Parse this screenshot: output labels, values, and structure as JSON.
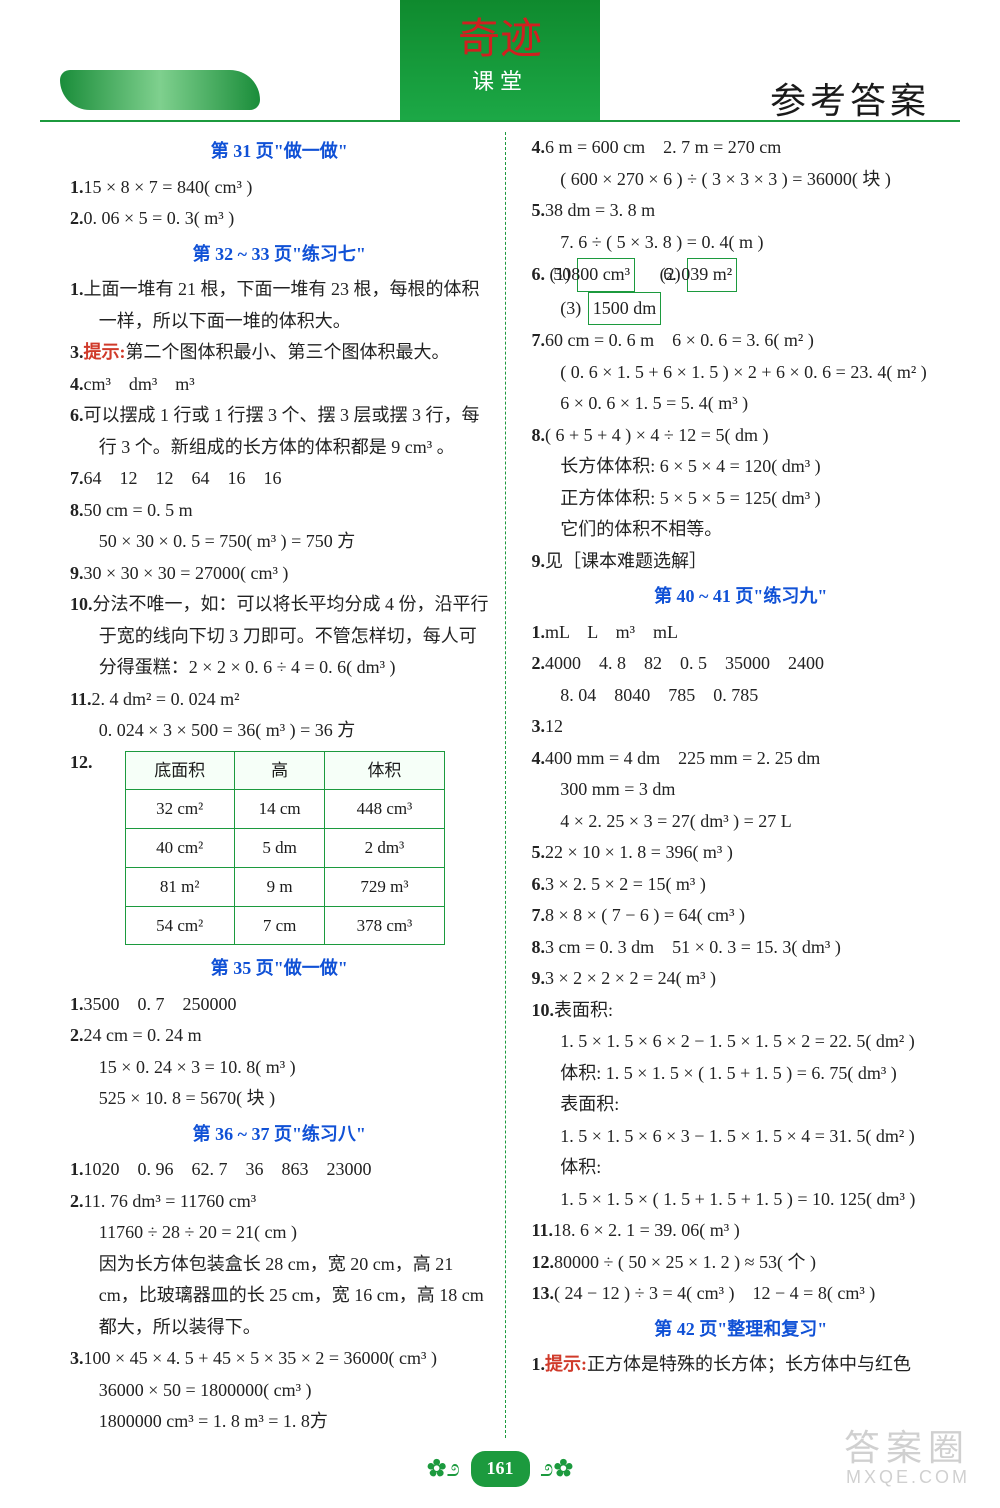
{
  "header": {
    "logo_top": "奇迹",
    "logo_bottom": "课堂",
    "title_right": "参考答案"
  },
  "left": {
    "sections": [
      {
        "title": "第 31 页\"做一做\"",
        "lines": [
          {
            "num": "1.",
            "text": "15 × 8 × 7 = 840( cm³ )"
          },
          {
            "num": "2.",
            "text": "0. 06 × 5 = 0. 3( m³ )"
          }
        ]
      },
      {
        "title": "第 32 ~ 33 页\"练习七\"",
        "lines": [
          {
            "num": "1.",
            "text": "上面一堆有 21 根，下面一堆有 23 根，每根的体积一样，所以下面一堆的体积大。"
          },
          {
            "num": "3.",
            "hint": "提示:",
            "text": "第二个图体积最小、第三个图体积最大。"
          },
          {
            "num": "4.",
            "text": "cm³　dm³　m³"
          },
          {
            "num": "6.",
            "text": "可以摆成 1 行或 1 行摆 3 个、摆 3 层或摆 3 行，每行 3 个。新组成的长方体的体积都是 9 cm³ 。"
          },
          {
            "num": "7.",
            "text": "64　12　12　64　16　16"
          },
          {
            "num": "8.",
            "text": "50 cm = 0. 5 m"
          },
          {
            "indent": true,
            "text": "50 × 30 × 0. 5 = 750( m³ ) = 750 方"
          },
          {
            "num": "9.",
            "text": "30 × 30 × 30 = 27000( cm³ )"
          },
          {
            "num": "10.",
            "text": "分法不唯一，如：可以将长平均分成 4 份，沿平行于宽的线向下切 3 刀即可。不管怎样切，每人可分得蛋糕：2 × 2 × 0. 6 ÷ 4 = 0. 6( dm³ )"
          },
          {
            "num": "11.",
            "text": "2. 4 dm² = 0. 024 m²"
          },
          {
            "indent": true,
            "text": "0. 024 × 3 × 500 = 36( m³ ) = 36 方"
          }
        ]
      }
    ],
    "table": {
      "num": "12.",
      "headers": [
        "底面积",
        "高",
        "体积"
      ],
      "rows": [
        [
          "32 cm²",
          "14 cm",
          "448 cm³"
        ],
        [
          "40 cm²",
          "5 dm",
          "2 dm³"
        ],
        [
          "81 m²",
          "9 m",
          "729 m³"
        ],
        [
          "54 cm²",
          "7 cm",
          "378 cm³"
        ]
      ]
    },
    "sections2": [
      {
        "title": "第 35 页\"做一做\"",
        "lines": [
          {
            "num": "1.",
            "text": "3500　0. 7　250000"
          },
          {
            "num": "2.",
            "text": "24 cm = 0. 24 m"
          },
          {
            "indent": true,
            "text": "15 × 0. 24 × 3 = 10. 8( m³ )"
          },
          {
            "indent": true,
            "text": "525 × 10. 8 = 5670( 块 )"
          }
        ]
      },
      {
        "title": "第 36 ~ 37 页\"练习八\"",
        "lines": [
          {
            "num": "1.",
            "text": "1020　0. 96　62. 7　36　863　23000"
          },
          {
            "num": "2.",
            "text": "11. 76 dm³ = 11760 cm³"
          },
          {
            "indent": true,
            "text": "11760 ÷ 28 ÷ 20 = 21( cm )"
          },
          {
            "indent": true,
            "text": "因为长方体包装盒长 28 cm，宽 20 cm，高 21 cm，比玻璃器皿的长 25 cm，宽 16 cm，高 18 cm 都大，所以装得下。"
          },
          {
            "num": "3.",
            "text": "100 × 45 × 4. 5 + 45 × 5 × 35 × 2 = 36000( cm³ )"
          },
          {
            "indent": true,
            "text": "36000 × 50 = 1800000( cm³ )"
          },
          {
            "indent": true,
            "text": "1800000 cm³ = 1. 8 m³ = 1. 8方"
          }
        ]
      }
    ]
  },
  "right": {
    "pre_lines": [
      {
        "num": "4.",
        "text": "6 m = 600 cm　2. 7 m = 270 cm"
      },
      {
        "indent": true,
        "text": "( 600 × 270 × 6 ) ÷ ( 3 × 3 × 3 ) = 36000( 块 )"
      },
      {
        "num": "5.",
        "text": "38 dm = 3. 8 m"
      },
      {
        "indent": true,
        "text": "7. 6 ÷ ( 5 × 3. 8 ) = 0. 4( m )"
      }
    ],
    "boxed_item": {
      "num": "6.",
      "parts": [
        {
          "label": "(1)",
          "val": "50800 cm³"
        },
        {
          "label": "(2)",
          "val": "6. 039 m²"
        },
        {
          "label": "(3)",
          "val": "1500 dm"
        }
      ]
    },
    "post_lines": [
      {
        "num": "7.",
        "text": "60 cm = 0. 6 m　6 × 0. 6 = 3. 6( m² )"
      },
      {
        "indent": true,
        "text": "( 0. 6 × 1. 5 + 6 × 1. 5 ) × 2 + 6 × 0. 6 = 23. 4( m² )"
      },
      {
        "indent": true,
        "text": "6 × 0. 6 × 1. 5 = 5. 4( m³ )"
      },
      {
        "num": "8.",
        "text": "( 6 + 5 + 4 ) × 4 ÷ 12 = 5( dm )"
      },
      {
        "indent": true,
        "text": "长方体体积: 6 × 5 × 4 = 120( dm³ )"
      },
      {
        "indent": true,
        "text": "正方体体积: 5 × 5 × 5 = 125( dm³ )"
      },
      {
        "indent": true,
        "text": "它们的体积不相等。"
      },
      {
        "num": "9.",
        "text": "见［课本难题选解］"
      }
    ],
    "sections": [
      {
        "title": "第 40 ~ 41 页\"练习九\"",
        "lines": [
          {
            "num": "1.",
            "text": "mL　L　m³　mL"
          },
          {
            "num": "2.",
            "text": "4000　4. 8　82　0. 5　35000　2400"
          },
          {
            "indent": true,
            "text": "8. 04　8040　785　0. 785"
          },
          {
            "num": "3.",
            "text": "12"
          },
          {
            "num": "4.",
            "text": "400 mm = 4 dm　225 mm = 2. 25 dm"
          },
          {
            "indent": true,
            "text": "300 mm = 3 dm"
          },
          {
            "indent": true,
            "text": "4 × 2. 25 × 3 = 27( dm³ ) = 27 L"
          },
          {
            "num": "5.",
            "text": "22 × 10 × 1. 8 = 396( m³ )"
          },
          {
            "num": "6.",
            "text": "3 × 2. 5 × 2 = 15( m³ )"
          },
          {
            "num": "7.",
            "text": "8 × 8 × ( 7 − 6 ) = 64( cm³ )"
          },
          {
            "num": "8.",
            "text": "3 cm = 0. 3 dm　51 × 0. 3 = 15. 3( dm³ )"
          },
          {
            "num": "9.",
            "text": "3 × 2 × 2 × 2 = 24( m³ )"
          },
          {
            "num": "10.",
            "text": "表面积:"
          },
          {
            "indent": true,
            "text": "1. 5 × 1. 5 × 6 × 2 − 1. 5 × 1. 5 × 2 = 22. 5( dm² )"
          },
          {
            "indent": true,
            "text": "体积: 1. 5 × 1. 5 × ( 1. 5 + 1. 5 ) = 6. 75( dm³ )"
          },
          {
            "indent": true,
            "text": "表面积:"
          },
          {
            "indent": true,
            "text": "1. 5 × 1. 5 × 6 × 3 − 1. 5 × 1. 5 × 4 = 31. 5( dm² )"
          },
          {
            "indent": true,
            "text": "体积:"
          },
          {
            "indent": true,
            "text": "1. 5 × 1. 5 × ( 1. 5 + 1. 5 + 1. 5 ) = 10. 125( dm³ )"
          },
          {
            "num": "11.",
            "text": "18. 6 × 2. 1 = 39. 06( m³ )"
          },
          {
            "num": "12.",
            "text": "80000 ÷ ( 50 × 25 × 1. 2 ) ≈ 53( 个 )"
          },
          {
            "num": "13.",
            "text": "( 24 − 12 ) ÷ 3 = 4( cm³ )　12 − 4 = 8( cm³ )"
          }
        ]
      },
      {
        "title": "第 42 页\"整理和复习\"",
        "lines": [
          {
            "num": "1.",
            "hint": "提示:",
            "text": "正方体是特殊的长方体；长方体中与红色"
          }
        ]
      }
    ]
  },
  "footer": {
    "page": "161"
  },
  "watermark": {
    "main": "答案圈",
    "sub": "MXQE.COM"
  },
  "style": {
    "accent": "#1c9a3e",
    "title_color": "#1051d6",
    "hint_color": "#d03a2a",
    "text_color": "#222222"
  }
}
